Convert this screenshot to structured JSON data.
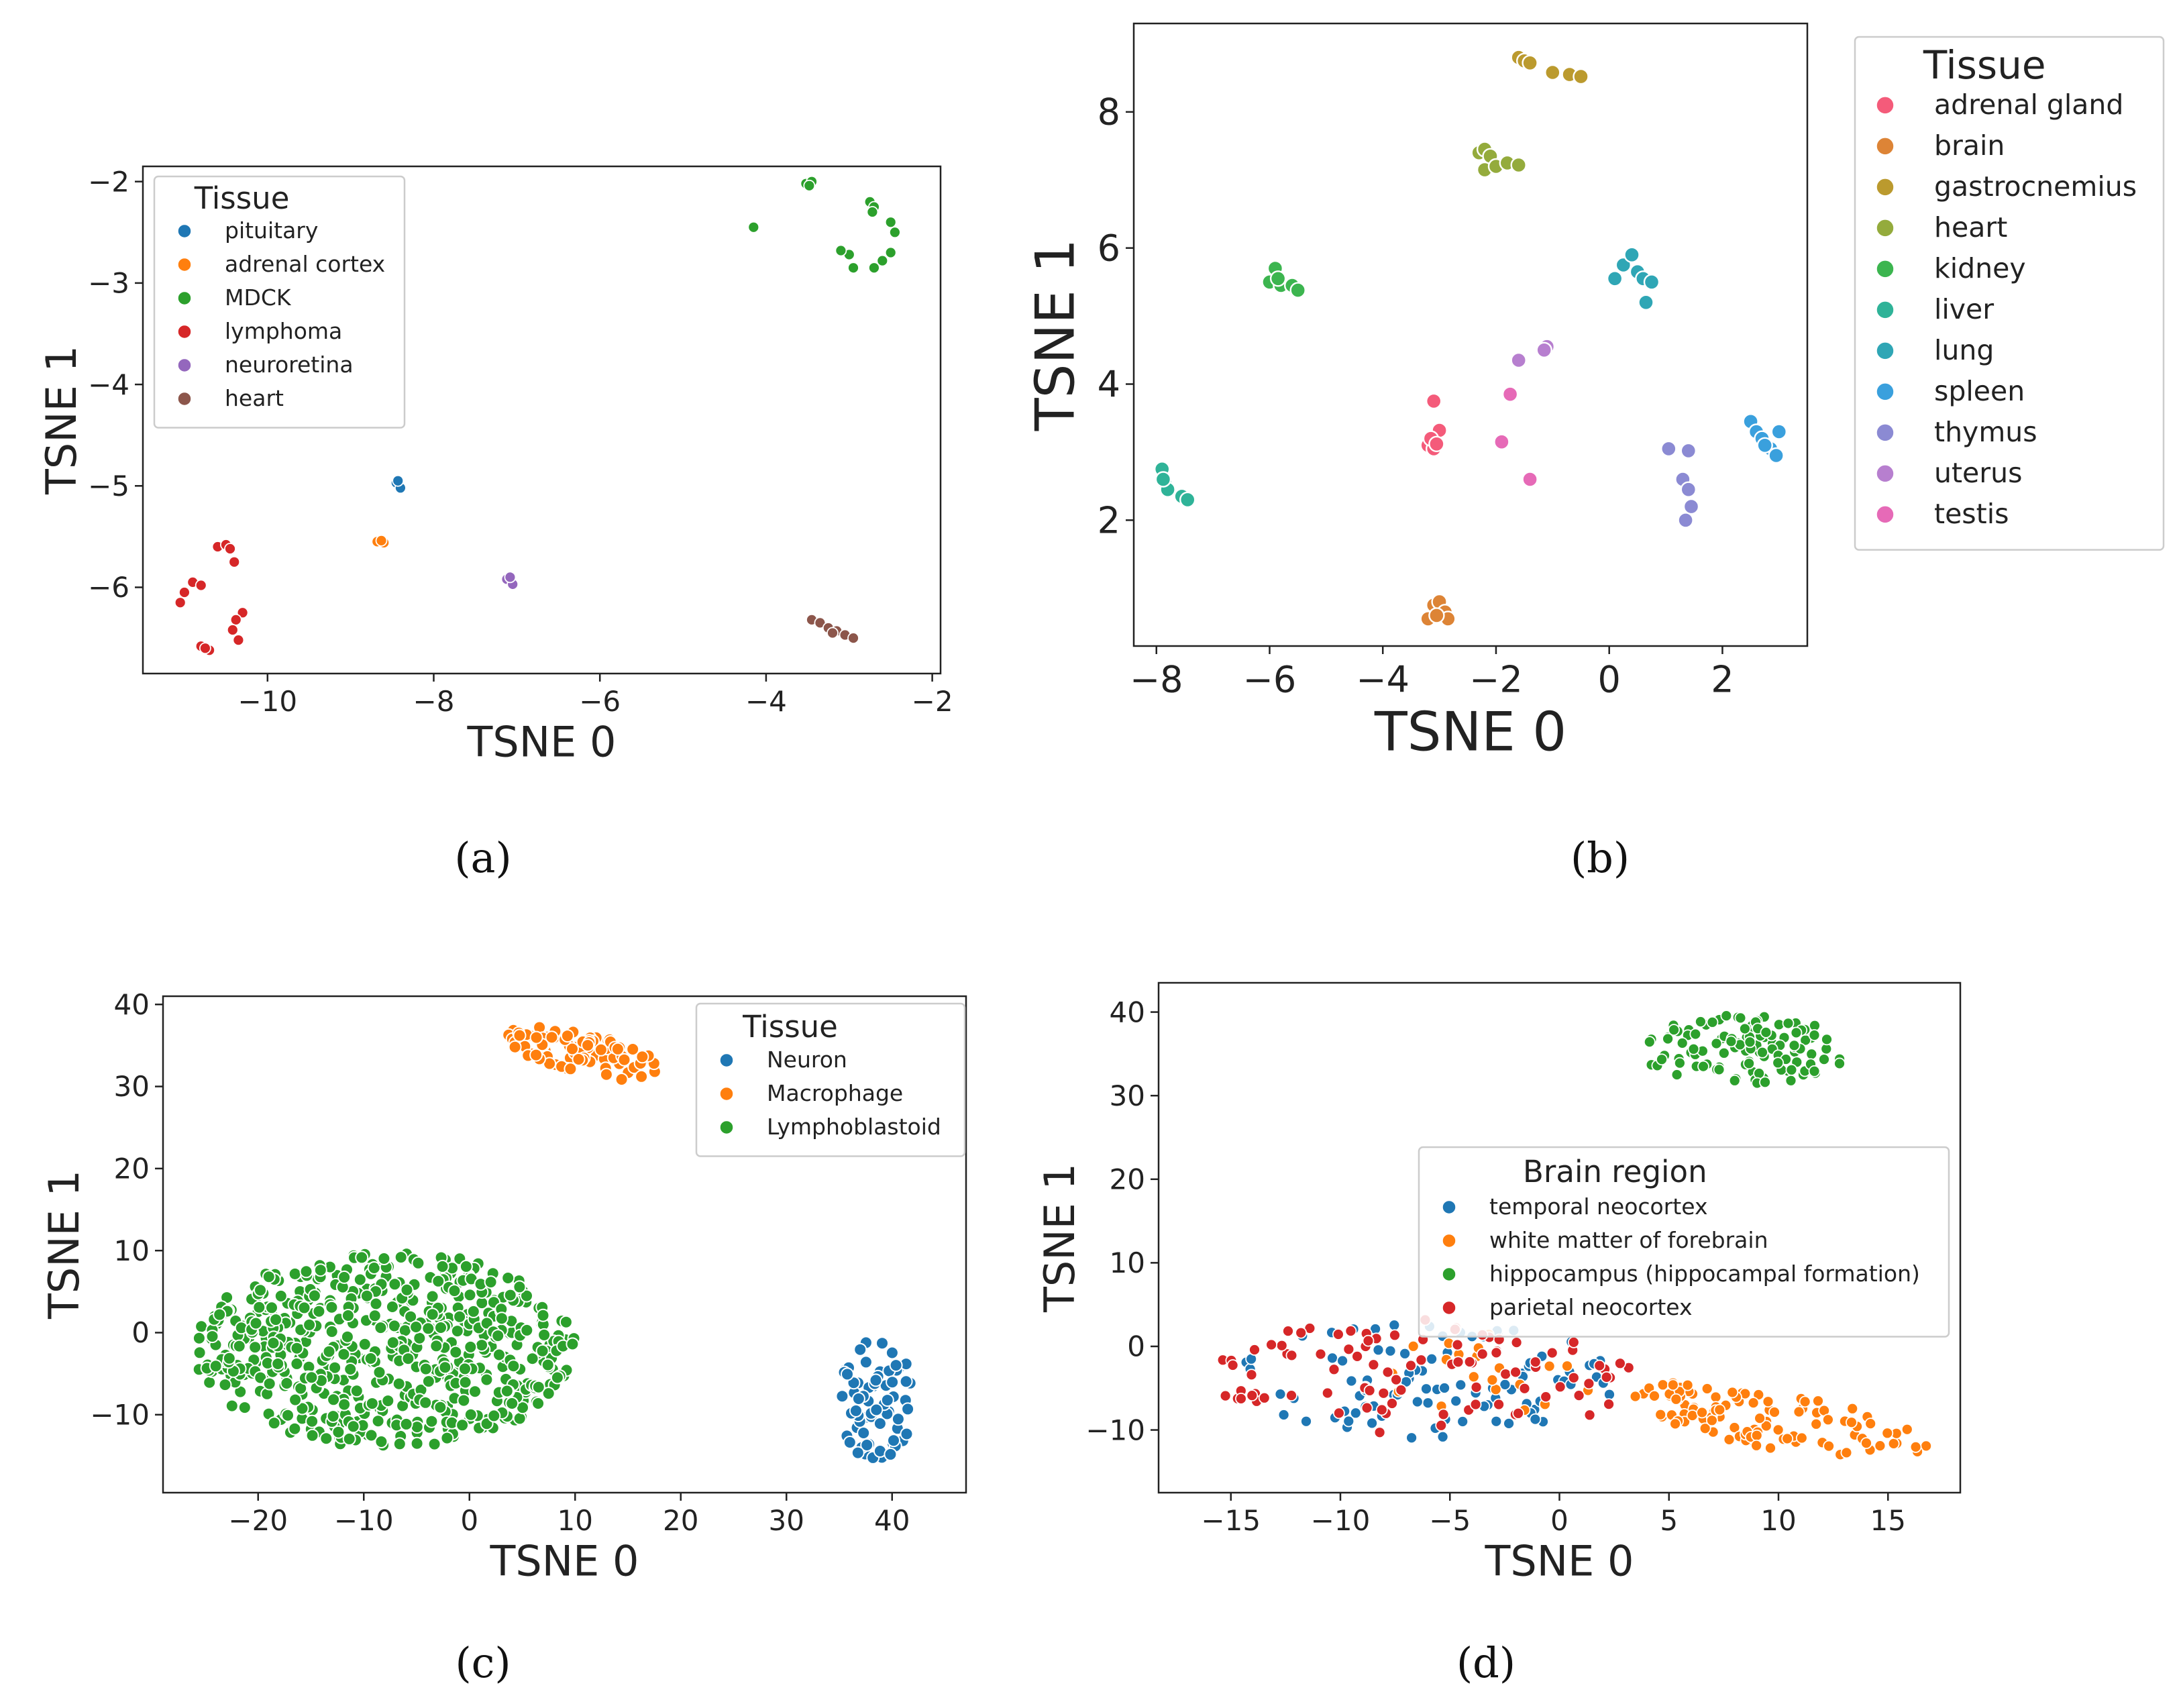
{
  "figure": {
    "captions": [
      "(a)",
      "(b)",
      "(c)",
      "(d)"
    ]
  },
  "chart_data": [
    {
      "type": "scatter",
      "panel": "(a)",
      "xlabel": "TSNE 0",
      "ylabel": "TSNE 1",
      "xlim": [
        -11.5,
        -1.9
      ],
      "ylim": [
        -6.85,
        -1.85
      ],
      "xticks": [
        -10,
        -8,
        -6,
        -4,
        -2
      ],
      "yticks": [
        -2,
        -3,
        -4,
        -5,
        -6
      ],
      "legend": {
        "title": "Tissue",
        "placement": "top-left"
      },
      "series": [
        {
          "name": "pituitary",
          "color": "#1f77b4",
          "points": [
            [
              -8.45,
              -4.97
            ],
            [
              -8.4,
              -5.02
            ],
            [
              -8.43,
              -4.95
            ]
          ]
        },
        {
          "name": "adrenal cortex",
          "color": "#ff7f0e",
          "points": [
            [
              -8.68,
              -5.55
            ],
            [
              -8.6,
              -5.56
            ],
            [
              -8.63,
              -5.54
            ]
          ]
        },
        {
          "name": "MDCK",
          "color": "#2ca02c",
          "points": [
            [
              -4.15,
              -2.45
            ],
            [
              -3.52,
              -2.02
            ],
            [
              -3.45,
              -2.0
            ],
            [
              -3.48,
              -2.04
            ],
            [
              -2.75,
              -2.2
            ],
            [
              -2.7,
              -2.25
            ],
            [
              -2.5,
              -2.4
            ],
            [
              -2.45,
              -2.5
            ],
            [
              -2.5,
              -2.7
            ],
            [
              -2.6,
              -2.78
            ],
            [
              -2.7,
              -2.85
            ],
            [
              -3.0,
              -2.72
            ],
            [
              -3.1,
              -2.68
            ],
            [
              -2.95,
              -2.85
            ],
            [
              -2.72,
              -2.3
            ]
          ]
        },
        {
          "name": "lymphoma",
          "color": "#d62728",
          "points": [
            [
              -10.6,
              -5.6
            ],
            [
              -10.5,
              -5.58
            ],
            [
              -10.45,
              -5.62
            ],
            [
              -10.4,
              -5.75
            ],
            [
              -11.05,
              -6.15
            ],
            [
              -11.0,
              -6.05
            ],
            [
              -10.9,
              -5.95
            ],
            [
              -10.8,
              -5.98
            ],
            [
              -10.8,
              -6.58
            ],
            [
              -10.7,
              -6.62
            ],
            [
              -10.75,
              -6.6
            ],
            [
              -10.3,
              -6.25
            ],
            [
              -10.38,
              -6.32
            ],
            [
              -10.42,
              -6.42
            ],
            [
              -10.35,
              -6.52
            ]
          ]
        },
        {
          "name": "neuroretina",
          "color": "#9467bd",
          "points": [
            [
              -7.12,
              -5.92
            ],
            [
              -7.05,
              -5.97
            ],
            [
              -7.08,
              -5.9
            ]
          ]
        },
        {
          "name": "heart",
          "color": "#8c564b",
          "points": [
            [
              -3.45,
              -6.32
            ],
            [
              -3.35,
              -6.35
            ],
            [
              -3.25,
              -6.4
            ],
            [
              -3.15,
              -6.43
            ],
            [
              -3.05,
              -6.47
            ],
            [
              -2.95,
              -6.5
            ],
            [
              -3.2,
              -6.45
            ]
          ]
        }
      ]
    },
    {
      "type": "scatter",
      "panel": "(b)",
      "xlabel": "TSNE 0",
      "ylabel": "TSNE 1",
      "xlim": [
        -8.4,
        3.5
      ],
      "ylim": [
        0.15,
        9.3
      ],
      "xticks": [
        -8,
        -6,
        -4,
        -2,
        0,
        2
      ],
      "yticks": [
        2,
        4,
        6,
        8
      ],
      "legend": {
        "title": "Tissue",
        "placement": "outside-right"
      },
      "series": [
        {
          "name": "adrenal gland",
          "color": "#f45b7a",
          "points": [
            [
              -3.1,
              3.75
            ],
            [
              -3.0,
              3.32
            ],
            [
              -3.2,
              3.1
            ],
            [
              -3.1,
              3.05
            ],
            [
              -3.15,
              3.2
            ],
            [
              -3.05,
              3.12
            ]
          ]
        },
        {
          "name": "brain",
          "color": "#dd8436",
          "points": [
            [
              -3.2,
              0.55
            ],
            [
              -3.1,
              0.75
            ],
            [
              -3.0,
              0.8
            ],
            [
              -2.9,
              0.65
            ],
            [
              -2.85,
              0.55
            ],
            [
              -3.05,
              0.6
            ]
          ]
        },
        {
          "name": "gastrocnemius",
          "color": "#bb9a2e",
          "points": [
            [
              -1.6,
              8.8
            ],
            [
              -1.5,
              8.75
            ],
            [
              -1.4,
              8.72
            ],
            [
              -1.0,
              8.58
            ],
            [
              -0.7,
              8.55
            ],
            [
              -0.5,
              8.52
            ]
          ]
        },
        {
          "name": "heart",
          "color": "#94ab3c",
          "points": [
            [
              -2.3,
              7.4
            ],
            [
              -2.2,
              7.45
            ],
            [
              -2.1,
              7.35
            ],
            [
              -2.2,
              7.15
            ],
            [
              -2.0,
              7.2
            ],
            [
              -1.8,
              7.25
            ],
            [
              -1.6,
              7.22
            ]
          ]
        },
        {
          "name": "kidney",
          "color": "#3cb54f",
          "points": [
            [
              -6.0,
              5.5
            ],
            [
              -5.9,
              5.7
            ],
            [
              -5.8,
              5.45
            ],
            [
              -5.6,
              5.45
            ],
            [
              -5.5,
              5.38
            ],
            [
              -5.85,
              5.55
            ]
          ]
        },
        {
          "name": "liver",
          "color": "#2fb398",
          "points": [
            [
              -7.9,
              2.75
            ],
            [
              -7.85,
              2.55
            ],
            [
              -7.8,
              2.45
            ],
            [
              -7.55,
              2.35
            ],
            [
              -7.45,
              2.3
            ],
            [
              -7.88,
              2.6
            ]
          ]
        },
        {
          "name": "lung",
          "color": "#2fa6b5",
          "points": [
            [
              0.1,
              5.55
            ],
            [
              0.25,
              5.75
            ],
            [
              0.4,
              5.9
            ],
            [
              0.5,
              5.65
            ],
            [
              0.6,
              5.55
            ],
            [
              0.75,
              5.5
            ],
            [
              0.65,
              5.2
            ]
          ]
        },
        {
          "name": "spleen",
          "color": "#3aa0dd",
          "points": [
            [
              2.5,
              3.45
            ],
            [
              2.6,
              3.3
            ],
            [
              2.7,
              3.2
            ],
            [
              2.85,
              3.05
            ],
            [
              3.0,
              3.3
            ],
            [
              2.95,
              2.95
            ],
            [
              2.75,
              3.1
            ]
          ]
        },
        {
          "name": "thymus",
          "color": "#8b8ad3",
          "points": [
            [
              1.05,
              3.05
            ],
            [
              1.3,
              2.6
            ],
            [
              1.4,
              2.45
            ],
            [
              1.45,
              2.2
            ],
            [
              1.35,
              2.0
            ],
            [
              1.4,
              3.02
            ]
          ]
        },
        {
          "name": "uterus",
          "color": "#b77fcf",
          "points": [
            [
              -1.6,
              4.35
            ],
            [
              -1.1,
              4.55
            ],
            [
              -1.15,
              4.5
            ]
          ]
        },
        {
          "name": "testis",
          "color": "#e66ab7",
          "points": [
            [
              -1.9,
              3.15
            ],
            [
              -1.75,
              3.85
            ],
            [
              -1.4,
              2.6
            ]
          ]
        }
      ]
    },
    {
      "type": "scatter",
      "panel": "(c)",
      "xlabel": "TSNE 0",
      "ylabel": "TSNE 1",
      "xlim": [
        -29,
        47
      ],
      "ylim": [
        -19.5,
        41
      ],
      "xticks": [
        -20,
        -10,
        0,
        10,
        20,
        30,
        40
      ],
      "yticks": [
        40,
        30,
        20,
        10,
        0,
        -10
      ],
      "legend": {
        "title": "Tissue",
        "placement": "top-right"
      },
      "series": [
        {
          "name": "Neuron",
          "color": "#1f77b4",
          "clusters": [
            {
              "cx": 38.5,
              "cy": -8,
              "rx": 3.5,
              "ry": 8,
              "n": 70,
              "seed": 11
            }
          ]
        },
        {
          "name": "Macrophage",
          "color": "#ff7f0e",
          "clusters": [
            {
              "cx": 11,
              "cy": 34,
              "rx": 7.5,
              "ry": 2.5,
              "n": 85,
              "seed": 23,
              "slope": -0.27
            }
          ]
        },
        {
          "name": "Lymphoblastoid",
          "color": "#2ca02c",
          "clusters": [
            {
              "cx": -8,
              "cy": -2,
              "rx": 18,
              "ry": 12,
              "n": 620,
              "seed": 37
            }
          ]
        }
      ]
    },
    {
      "type": "scatter",
      "panel": "(d)",
      "xlabel": "TSNE 0",
      "ylabel": "TSNE 1",
      "xlim": [
        -18.3,
        18.3
      ],
      "ylim": [
        -17.5,
        43.5
      ],
      "xticks": [
        -15,
        -10,
        -5,
        0,
        5,
        10,
        15
      ],
      "yticks": [
        40,
        30,
        20,
        10,
        0,
        -10
      ],
      "legend": {
        "title": "Brain region",
        "placement": "center-right"
      },
      "series": [
        {
          "name": "temporal neocortex",
          "color": "#1f77b4",
          "clusters": [
            {
              "cx": -6,
              "cy": -4,
              "rx": 9,
              "ry": 7,
              "n": 95,
              "seed": 51
            }
          ]
        },
        {
          "name": "white matter of forebrain",
          "color": "#ff7f0e",
          "clusters": [
            {
              "cx": 10,
              "cy": -9,
              "rx": 7,
              "ry": 3.5,
              "n": 110,
              "seed": 63,
              "slope": -0.45
            },
            {
              "cx": -3,
              "cy": -3,
              "rx": 5,
              "ry": 5,
              "n": 20,
              "seed": 64
            }
          ]
        },
        {
          "name": "hippocampus (hippocampal formation)",
          "color": "#2ca02c",
          "clusters": [
            {
              "cx": 8.5,
              "cy": 35.5,
              "rx": 4.8,
              "ry": 4.2,
              "n": 120,
              "seed": 77
            }
          ]
        },
        {
          "name": "parietal neocortex",
          "color": "#d62728",
          "clusters": [
            {
              "cx": -6,
              "cy": -3.5,
              "rx": 10,
              "ry": 7,
              "n": 95,
              "seed": 89
            }
          ]
        }
      ]
    }
  ]
}
